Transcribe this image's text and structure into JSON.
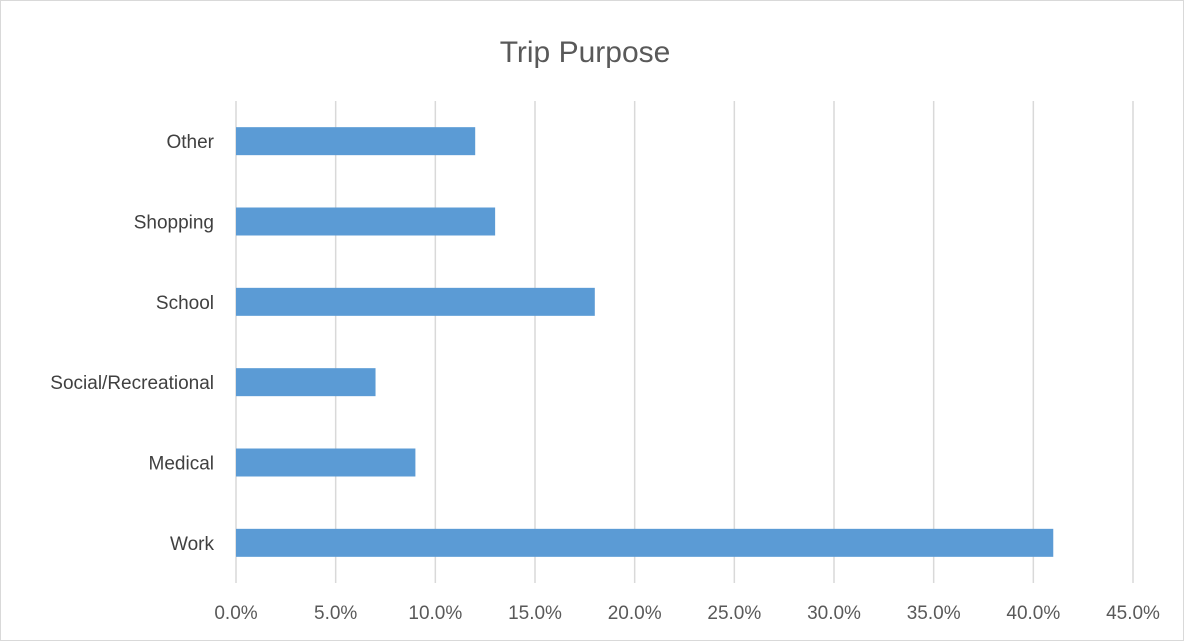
{
  "chart_data": {
    "type": "bar",
    "orientation": "horizontal",
    "title": "Trip Purpose",
    "xlabel": "",
    "ylabel": "",
    "categories": [
      "Other",
      "Shopping",
      "School",
      "Social/Recreational",
      "Medical",
      "Work"
    ],
    "values": [
      12.0,
      13.0,
      18.0,
      7.0,
      9.0,
      41.0
    ],
    "value_unit": "%",
    "xlim": [
      0,
      45
    ],
    "x_ticks": [
      "0.0%",
      "5.0%",
      "10.0%",
      "15.0%",
      "20.0%",
      "25.0%",
      "30.0%",
      "35.0%",
      "40.0%",
      "45.0%"
    ],
    "grid": "vertical",
    "legend": "none",
    "bar_color": "#5b9bd5"
  }
}
